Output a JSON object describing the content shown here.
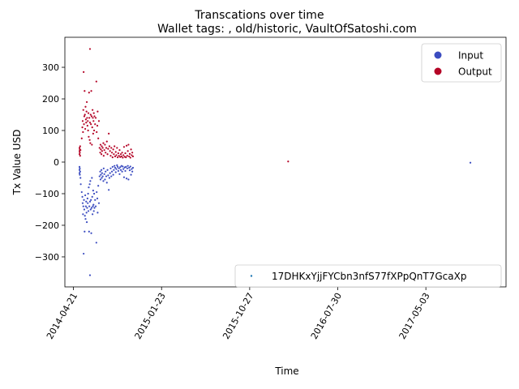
{
  "chart_data": {
    "type": "scatter",
    "title": "Transcations over time",
    "subtitle": "Wallet tags: , old/historic, VaultOfSatoshi.com",
    "xlabel": "Time",
    "ylabel": "Tx Value USD",
    "xlim": [
      "2014-03-25",
      "2018-01-10"
    ],
    "ylim": [
      -395,
      395
    ],
    "x_ticks": [
      "2014-04-21",
      "2015-01-23",
      "2015-10-27",
      "2016-07-30",
      "2017-05-03"
    ],
    "y_ticks": [
      -300,
      -200,
      -100,
      0,
      100,
      200,
      300
    ],
    "grid": false,
    "legend_top": {
      "placement": "top-right",
      "entries": [
        {
          "label": "Input",
          "color": "#3b4cc0"
        },
        {
          "label": "Output",
          "color": "#b40426"
        }
      ]
    },
    "legend_bottom": {
      "placement": "bottom-right",
      "entries": [
        {
          "label": "17DHKxYjjFYCbn3nfS77fXPpQnT7GcaXp",
          "color": "#1f77b4"
        }
      ]
    },
    "series": [
      {
        "name": "Output",
        "color": "#b40426",
        "points": [
          [
            "2014-05-10",
            25
          ],
          [
            "2014-05-10",
            35
          ],
          [
            "2014-05-10",
            45
          ],
          [
            "2014-05-11",
            30
          ],
          [
            "2014-05-11",
            40
          ],
          [
            "2014-05-12",
            50
          ],
          [
            "2014-05-12",
            20
          ],
          [
            "2014-05-13",
            38
          ],
          [
            "2014-05-17",
            75
          ],
          [
            "2014-05-19",
            110
          ],
          [
            "2014-05-20",
            130
          ],
          [
            "2014-05-21",
            95
          ],
          [
            "2014-05-22",
            165
          ],
          [
            "2014-05-23",
            285
          ],
          [
            "2014-05-24",
            120
          ],
          [
            "2014-05-25",
            145
          ],
          [
            "2014-05-26",
            225
          ],
          [
            "2014-05-27",
            150
          ],
          [
            "2014-05-28",
            105
          ],
          [
            "2014-05-29",
            175
          ],
          [
            "2014-05-30",
            135
          ],
          [
            "2014-05-31",
            125
          ],
          [
            "2014-06-01",
            160
          ],
          [
            "2014-06-02",
            190
          ],
          [
            "2014-06-03",
            140
          ],
          [
            "2014-06-04",
            115
          ],
          [
            "2014-06-05",
            130
          ],
          [
            "2014-06-06",
            100
          ],
          [
            "2014-06-07",
            155
          ],
          [
            "2014-06-08",
            80
          ],
          [
            "2014-06-09",
            220
          ],
          [
            "2014-06-10",
            140
          ],
          [
            "2014-06-11",
            70
          ],
          [
            "2014-06-12",
            125
          ],
          [
            "2014-06-12",
            358
          ],
          [
            "2014-06-13",
            60
          ],
          [
            "2014-06-14",
            150
          ],
          [
            "2014-06-15",
            120
          ],
          [
            "2014-06-16",
            225
          ],
          [
            "2014-06-17",
            145
          ],
          [
            "2014-06-18",
            55
          ],
          [
            "2014-06-19",
            110
          ],
          [
            "2014-06-20",
            165
          ],
          [
            "2014-06-21",
            140
          ],
          [
            "2014-06-22",
            90
          ],
          [
            "2014-06-23",
            130
          ],
          [
            "2014-06-24",
            155
          ],
          [
            "2014-06-25",
            100
          ],
          [
            "2014-06-26",
            145
          ],
          [
            "2014-06-28",
            120
          ],
          [
            "2014-06-30",
            140
          ],
          [
            "2014-07-02",
            255
          ],
          [
            "2014-07-03",
            95
          ],
          [
            "2014-07-05",
            115
          ],
          [
            "2014-07-06",
            160
          ],
          [
            "2014-07-08",
            75
          ],
          [
            "2014-07-10",
            130
          ],
          [
            "2014-07-12",
            45
          ],
          [
            "2014-07-14",
            30
          ],
          [
            "2014-07-15",
            55
          ],
          [
            "2014-07-16",
            40
          ],
          [
            "2014-07-18",
            25
          ],
          [
            "2014-07-19",
            50
          ],
          [
            "2014-07-20",
            35
          ],
          [
            "2014-07-22",
            45
          ],
          [
            "2014-07-24",
            60
          ],
          [
            "2014-07-25",
            20
          ],
          [
            "2014-07-27",
            38
          ],
          [
            "2014-07-29",
            55
          ],
          [
            "2014-07-31",
            30
          ],
          [
            "2014-08-02",
            45
          ],
          [
            "2014-08-04",
            65
          ],
          [
            "2014-08-06",
            25
          ],
          [
            "2014-08-08",
            42
          ],
          [
            "2014-08-10",
            90
          ],
          [
            "2014-08-12",
            50
          ],
          [
            "2014-08-14",
            35
          ],
          [
            "2014-08-16",
            20
          ],
          [
            "2014-08-18",
            45
          ],
          [
            "2014-08-20",
            30
          ],
          [
            "2014-08-22",
            15
          ],
          [
            "2014-08-24",
            40
          ],
          [
            "2014-08-26",
            25
          ],
          [
            "2014-08-28",
            50
          ],
          [
            "2014-08-30",
            18
          ],
          [
            "2014-09-01",
            32
          ],
          [
            "2014-09-03",
            22
          ],
          [
            "2014-09-05",
            45
          ],
          [
            "2014-09-07",
            15
          ],
          [
            "2014-09-09",
            28
          ],
          [
            "2014-09-11",
            20
          ],
          [
            "2014-09-13",
            38
          ],
          [
            "2014-09-15",
            16
          ],
          [
            "2014-09-17",
            25
          ],
          [
            "2014-09-19",
            18
          ],
          [
            "2014-09-21",
            30
          ],
          [
            "2014-09-23",
            14
          ],
          [
            "2014-09-25",
            22
          ],
          [
            "2014-09-27",
            48
          ],
          [
            "2014-09-29",
            17
          ],
          [
            "2014-10-01",
            28
          ],
          [
            "2014-10-03",
            15
          ],
          [
            "2014-10-05",
            52
          ],
          [
            "2014-10-07",
            20
          ],
          [
            "2014-10-09",
            35
          ],
          [
            "2014-10-11",
            55
          ],
          [
            "2014-10-13",
            18
          ],
          [
            "2014-10-15",
            26
          ],
          [
            "2014-10-17",
            14
          ],
          [
            "2014-10-19",
            40
          ],
          [
            "2014-10-21",
            22
          ],
          [
            "2014-10-23",
            30
          ],
          [
            "2014-10-25",
            18
          ],
          [
            "2016-02-25",
            2
          ]
        ]
      },
      {
        "name": "Input",
        "color": "#3b4cc0",
        "points": [
          [
            "2014-05-10",
            -15
          ],
          [
            "2014-05-10",
            -25
          ],
          [
            "2014-05-10",
            -35
          ],
          [
            "2014-05-11",
            -20
          ],
          [
            "2014-05-11",
            -40
          ],
          [
            "2014-05-12",
            -30
          ],
          [
            "2014-05-13",
            -50
          ],
          [
            "2014-05-14",
            -70
          ],
          [
            "2014-05-17",
            -95
          ],
          [
            "2014-05-19",
            -110
          ],
          [
            "2014-05-20",
            -130
          ],
          [
            "2014-05-21",
            -165
          ],
          [
            "2014-05-22",
            -140
          ],
          [
            "2014-05-23",
            -290
          ],
          [
            "2014-05-24",
            -120
          ],
          [
            "2014-05-25",
            -150
          ],
          [
            "2014-05-26",
            -220
          ],
          [
            "2014-05-27",
            -170
          ],
          [
            "2014-05-28",
            -105
          ],
          [
            "2014-05-29",
            -180
          ],
          [
            "2014-05-30",
            -140
          ],
          [
            "2014-05-31",
            -125
          ],
          [
            "2014-06-01",
            -160
          ],
          [
            "2014-06-02",
            -190
          ],
          [
            "2014-06-03",
            -145
          ],
          [
            "2014-06-04",
            -115
          ],
          [
            "2014-06-05",
            -130
          ],
          [
            "2014-06-06",
            -100
          ],
          [
            "2014-06-07",
            -155
          ],
          [
            "2014-06-08",
            -80
          ],
          [
            "2014-06-09",
            -220
          ],
          [
            "2014-06-10",
            -140
          ],
          [
            "2014-06-11",
            -70
          ],
          [
            "2014-06-12",
            -125
          ],
          [
            "2014-06-12",
            -358
          ],
          [
            "2014-06-13",
            -60
          ],
          [
            "2014-06-14",
            -150
          ],
          [
            "2014-06-15",
            -120
          ],
          [
            "2014-06-16",
            -225
          ],
          [
            "2014-06-17",
            -145
          ],
          [
            "2014-06-18",
            -50
          ],
          [
            "2014-06-19",
            -110
          ],
          [
            "2014-06-20",
            -165
          ],
          [
            "2014-06-21",
            -140
          ],
          [
            "2014-06-22",
            -90
          ],
          [
            "2014-06-23",
            -135
          ],
          [
            "2014-06-24",
            -155
          ],
          [
            "2014-06-25",
            -100
          ],
          [
            "2014-06-26",
            -145
          ],
          [
            "2014-06-28",
            -120
          ],
          [
            "2014-06-30",
            -140
          ],
          [
            "2014-07-02",
            -255
          ],
          [
            "2014-07-03",
            -95
          ],
          [
            "2014-07-05",
            -115
          ],
          [
            "2014-07-06",
            -160
          ],
          [
            "2014-07-08",
            -75
          ],
          [
            "2014-07-10",
            -130
          ],
          [
            "2014-07-12",
            -45
          ],
          [
            "2014-07-14",
            -30
          ],
          [
            "2014-07-15",
            -55
          ],
          [
            "2014-07-16",
            -40
          ],
          [
            "2014-07-18",
            -25
          ],
          [
            "2014-07-19",
            -50
          ],
          [
            "2014-07-20",
            -35
          ],
          [
            "2014-07-22",
            -45
          ],
          [
            "2014-07-24",
            -60
          ],
          [
            "2014-07-25",
            -20
          ],
          [
            "2014-07-27",
            -38
          ],
          [
            "2014-07-29",
            -55
          ],
          [
            "2014-07-31",
            -30
          ],
          [
            "2014-08-02",
            -45
          ],
          [
            "2014-08-04",
            -65
          ],
          [
            "2014-08-06",
            -25
          ],
          [
            "2014-08-08",
            -42
          ],
          [
            "2014-08-10",
            -88
          ],
          [
            "2014-08-12",
            -50
          ],
          [
            "2014-08-14",
            -35
          ],
          [
            "2014-08-16",
            -20
          ],
          [
            "2014-08-18",
            -45
          ],
          [
            "2014-08-20",
            -30
          ],
          [
            "2014-08-22",
            -15
          ],
          [
            "2014-08-24",
            -40
          ],
          [
            "2014-08-26",
            -25
          ],
          [
            "2014-08-28",
            -12
          ],
          [
            "2014-08-30",
            -18
          ],
          [
            "2014-09-01",
            -32
          ],
          [
            "2014-09-03",
            -22
          ],
          [
            "2014-09-05",
            -10
          ],
          [
            "2014-09-07",
            -15
          ],
          [
            "2014-09-09",
            -28
          ],
          [
            "2014-09-11",
            -20
          ],
          [
            "2014-09-13",
            -38
          ],
          [
            "2014-09-15",
            -16
          ],
          [
            "2014-09-17",
            -25
          ],
          [
            "2014-09-19",
            -12
          ],
          [
            "2014-09-21",
            -30
          ],
          [
            "2014-09-23",
            -14
          ],
          [
            "2014-09-25",
            -22
          ],
          [
            "2014-09-27",
            -48
          ],
          [
            "2014-09-29",
            -17
          ],
          [
            "2014-10-01",
            -28
          ],
          [
            "2014-10-03",
            -15
          ],
          [
            "2014-10-05",
            -52
          ],
          [
            "2014-10-07",
            -20
          ],
          [
            "2014-10-09",
            -12
          ],
          [
            "2014-10-11",
            -55
          ],
          [
            "2014-10-13",
            -18
          ],
          [
            "2014-10-15",
            -26
          ],
          [
            "2014-10-17",
            -14
          ],
          [
            "2014-10-19",
            -40
          ],
          [
            "2014-10-21",
            -22
          ],
          [
            "2014-10-23",
            -30
          ],
          [
            "2014-10-25",
            -18
          ],
          [
            "2017-09-20",
            -2
          ]
        ]
      }
    ]
  }
}
